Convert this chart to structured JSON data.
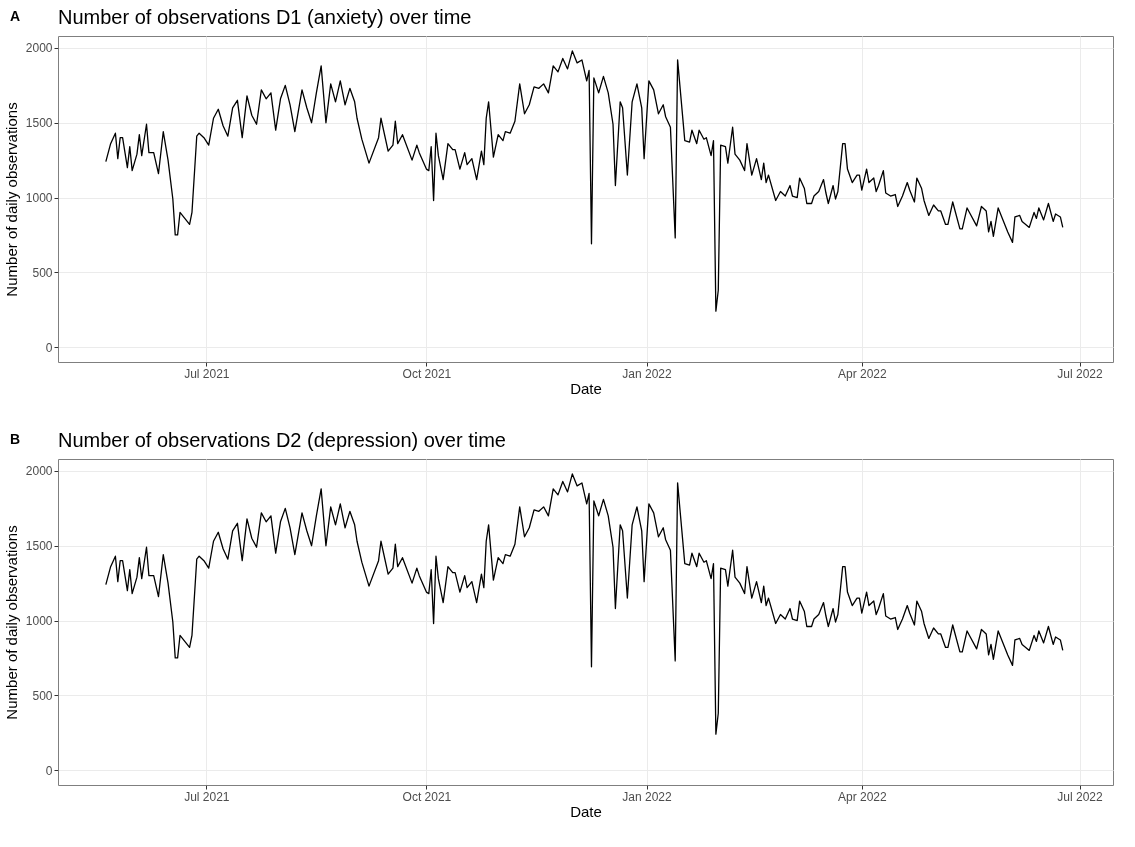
{
  "chart_data": [
    {
      "type": "line",
      "title": "Number of observations D1 (anxiety) over time",
      "annotations": [
        "A"
      ],
      "xlabel": "Date",
      "ylabel": "Number of daily observations",
      "color": "#000000",
      "grid": true,
      "x": [
        "2021-05-20",
        "2021-05-22",
        "2021-05-24",
        "2021-05-25",
        "2021-05-26",
        "2021-05-27",
        "2021-05-29",
        "2021-05-30",
        "2021-05-31",
        "2021-06-02",
        "2021-06-03",
        "2021-06-04",
        "2021-06-06",
        "2021-06-07",
        "2021-06-09",
        "2021-06-11",
        "2021-06-13",
        "2021-06-15",
        "2021-06-17",
        "2021-06-18",
        "2021-06-19",
        "2021-06-20",
        "2021-06-22",
        "2021-06-24",
        "2021-06-25",
        "2021-06-27",
        "2021-06-28",
        "2021-06-30",
        "2021-07-02",
        "2021-07-04",
        "2021-07-06",
        "2021-07-08",
        "2021-07-10",
        "2021-07-12",
        "2021-07-14",
        "2021-07-16",
        "2021-07-18",
        "2021-07-20",
        "2021-07-22",
        "2021-07-24",
        "2021-07-26",
        "2021-07-28",
        "2021-07-30",
        "2021-08-01",
        "2021-08-03",
        "2021-08-05",
        "2021-08-07",
        "2021-08-10",
        "2021-08-12",
        "2021-08-14",
        "2021-08-16",
        "2021-08-18",
        "2021-08-20",
        "2021-08-22",
        "2021-08-24",
        "2021-08-26",
        "2021-08-28",
        "2021-08-30",
        "2021-09-01",
        "2021-09-02",
        "2021-09-04",
        "2021-09-07",
        "2021-09-11",
        "2021-09-12",
        "2021-09-15",
        "2021-09-17",
        "2021-09-18",
        "2021-09-19",
        "2021-09-21",
        "2021-09-25",
        "2021-09-27",
        "2021-09-28",
        "2021-10-01",
        "2021-10-02",
        "2021-10-03",
        "2021-10-04",
        "2021-10-05",
        "2021-10-06",
        "2021-10-08",
        "2021-10-10",
        "2021-10-12",
        "2021-10-13",
        "2021-10-15",
        "2021-10-17",
        "2021-10-18",
        "2021-10-20",
        "2021-10-22",
        "2021-10-24",
        "2021-10-25",
        "2021-10-26",
        "2021-10-27",
        "2021-10-29",
        "2021-10-31",
        "2021-11-02",
        "2021-11-03",
        "2021-11-05",
        "2021-11-07",
        "2021-11-09",
        "2021-11-11",
        "2021-11-13",
        "2021-11-15",
        "2021-11-17",
        "2021-11-19",
        "2021-11-21",
        "2021-11-23",
        "2021-11-25",
        "2021-11-27",
        "2021-11-29",
        "2021-12-01",
        "2021-12-03",
        "2021-12-05",
        "2021-12-07",
        "2021-12-08",
        "2021-12-09",
        "2021-12-10",
        "2021-12-12",
        "2021-12-14",
        "2021-12-16",
        "2021-12-18",
        "2021-12-19",
        "2021-12-21",
        "2021-12-22",
        "2021-12-24",
        "2021-12-26",
        "2021-12-28",
        "2021-12-30",
        "2021-12-31",
        "2022-01-02",
        "2022-01-04",
        "2022-01-06",
        "2022-01-08",
        "2022-01-09",
        "2022-01-11",
        "2022-01-13",
        "2022-01-14",
        "2022-01-17",
        "2022-01-19",
        "2022-01-20",
        "2022-01-22",
        "2022-01-23",
        "2022-01-25",
        "2022-01-26",
        "2022-01-28",
        "2022-01-29",
        "2022-01-30",
        "2022-01-31",
        "2022-02-01",
        "2022-02-03",
        "2022-02-04",
        "2022-02-06",
        "2022-02-07",
        "2022-02-09",
        "2022-02-11",
        "2022-02-12",
        "2022-02-14",
        "2022-02-16",
        "2022-02-18",
        "2022-02-19",
        "2022-02-20",
        "2022-02-21",
        "2022-02-24",
        "2022-02-26",
        "2022-02-28",
        "2022-03-02",
        "2022-03-03",
        "2022-03-05",
        "2022-03-06",
        "2022-03-08",
        "2022-03-09",
        "2022-03-11",
        "2022-03-12",
        "2022-03-14",
        "2022-03-16",
        "2022-03-17",
        "2022-03-18",
        "2022-03-20",
        "2022-03-21",
        "2022-03-22",
        "2022-03-24",
        "2022-03-25",
        "2022-03-26",
        "2022-03-28",
        "2022-03-30",
        "2022-03-31",
        "2022-04-01",
        "2022-04-03",
        "2022-04-04",
        "2022-04-06",
        "2022-04-07",
        "2022-04-08",
        "2022-04-10",
        "2022-04-11",
        "2022-04-13",
        "2022-04-15",
        "2022-04-16",
        "2022-04-18",
        "2022-04-20",
        "2022-04-21",
        "2022-04-23",
        "2022-04-24",
        "2022-04-26",
        "2022-04-27",
        "2022-04-29",
        "2022-05-01",
        "2022-05-03",
        "2022-05-04",
        "2022-05-06",
        "2022-05-07",
        "2022-05-09",
        "2022-05-10",
        "2022-05-12",
        "2022-05-13",
        "2022-05-15",
        "2022-05-16",
        "2022-05-19",
        "2022-05-21",
        "2022-05-23",
        "2022-05-24",
        "2022-05-25",
        "2022-05-26",
        "2022-05-28",
        "2022-05-29",
        "2022-06-01",
        "2022-06-03",
        "2022-06-04",
        "2022-06-06",
        "2022-06-07",
        "2022-06-10",
        "2022-06-12",
        "2022-06-13",
        "2022-06-14",
        "2022-06-16",
        "2022-06-18",
        "2022-06-20",
        "2022-06-21",
        "2022-06-23",
        "2022-06-24"
      ],
      "values": [
        1240,
        1360,
        1430,
        1260,
        1400,
        1400,
        1200,
        1340,
        1180,
        1290,
        1420,
        1280,
        1490,
        1300,
        1300,
        1160,
        1440,
        1250,
        990,
        750,
        750,
        900,
        860,
        820,
        900,
        1410,
        1430,
        1400,
        1350,
        1530,
        1590,
        1480,
        1410,
        1600,
        1650,
        1400,
        1680,
        1550,
        1490,
        1720,
        1660,
        1700,
        1450,
        1660,
        1750,
        1620,
        1440,
        1720,
        1600,
        1500,
        1700,
        1880,
        1500,
        1760,
        1640,
        1780,
        1620,
        1730,
        1640,
        1530,
        1390,
        1230,
        1400,
        1530,
        1310,
        1350,
        1510,
        1360,
        1420,
        1250,
        1350,
        1300,
        1190,
        1180,
        1340,
        980,
        1430,
        1280,
        1120,
        1360,
        1320,
        1320,
        1190,
        1300,
        1220,
        1260,
        1120,
        1310,
        1220,
        1530,
        1640,
        1270,
        1420,
        1380,
        1440,
        1430,
        1510,
        1760,
        1560,
        1620,
        1740,
        1730,
        1760,
        1700,
        1880,
        1840,
        1930,
        1860,
        1980,
        1900,
        1920,
        1780,
        1850,
        690,
        1800,
        1700,
        1810,
        1700,
        1490,
        1080,
        1640,
        1600,
        1150,
        1640,
        1760,
        1600,
        1260,
        1780,
        1720,
        1560,
        1620,
        1540,
        1470,
        730,
        1920,
        1380,
        1370,
        1450,
        1360,
        1450,
        1390,
        1400,
        1280,
        1380,
        240,
        380,
        1350,
        1340,
        1230,
        1470,
        1290,
        1250,
        1180,
        1360,
        1150,
        1260,
        1120,
        1230,
        1100,
        1150,
        980,
        1040,
        1010,
        1080,
        1010,
        1000,
        1130,
        1060,
        960,
        960,
        1010,
        1040,
        1120,
        1030,
        960,
        1080,
        990,
        1040,
        1360,
        1360,
        1190,
        1100,
        1150,
        1150,
        1050,
        1190,
        1100,
        1130,
        1040,
        1080,
        1180,
        1030,
        1010,
        1020,
        940,
        1010,
        1100,
        1050,
        970,
        1130,
        1060,
        980,
        880,
        950,
        910,
        910,
        820,
        820,
        970,
        910,
        790,
        790,
        930,
        900,
        810,
        940,
        910,
        770,
        840,
        740,
        930,
        890,
        770,
        700,
        870,
        880,
        840,
        800,
        900,
        860,
        930,
        850,
        960,
        840,
        890,
        870,
        800
      ],
      "xlim": [
        "2021-04-30",
        "2022-07-15"
      ],
      "xticks": [
        {
          "value": "2021-07-01",
          "label": "Jul 2021"
        },
        {
          "value": "2021-10-01",
          "label": "Oct 2021"
        },
        {
          "value": "2022-01-01",
          "label": "Jan 2022"
        },
        {
          "value": "2022-04-01",
          "label": "Apr 2022"
        },
        {
          "value": "2022-07-01",
          "label": "Jul 2022"
        }
      ],
      "ylim": [
        -100,
        2080
      ],
      "yticks": [
        0,
        500,
        1000,
        1500,
        2000
      ]
    },
    {
      "type": "line",
      "title": "Number of observations D2 (depression) over time",
      "annotations": [
        "B"
      ],
      "xlabel": "Date",
      "ylabel": "Number of daily observations",
      "color": "#000000",
      "grid": true,
      "x": [
        "2021-05-20",
        "2021-05-22",
        "2021-05-24",
        "2021-05-25",
        "2021-05-26",
        "2021-05-27",
        "2021-05-29",
        "2021-05-30",
        "2021-05-31",
        "2021-06-02",
        "2021-06-03",
        "2021-06-04",
        "2021-06-06",
        "2021-06-07",
        "2021-06-09",
        "2021-06-11",
        "2021-06-13",
        "2021-06-15",
        "2021-06-17",
        "2021-06-18",
        "2021-06-19",
        "2021-06-20",
        "2021-06-22",
        "2021-06-24",
        "2021-06-25",
        "2021-06-27",
        "2021-06-28",
        "2021-06-30",
        "2021-07-02",
        "2021-07-04",
        "2021-07-06",
        "2021-07-08",
        "2021-07-10",
        "2021-07-12",
        "2021-07-14",
        "2021-07-16",
        "2021-07-18",
        "2021-07-20",
        "2021-07-22",
        "2021-07-24",
        "2021-07-26",
        "2021-07-28",
        "2021-07-30",
        "2021-08-01",
        "2021-08-03",
        "2021-08-05",
        "2021-08-07",
        "2021-08-10",
        "2021-08-12",
        "2021-08-14",
        "2021-08-16",
        "2021-08-18",
        "2021-08-20",
        "2021-08-22",
        "2021-08-24",
        "2021-08-26",
        "2021-08-28",
        "2021-08-30",
        "2021-09-01",
        "2021-09-02",
        "2021-09-04",
        "2021-09-07",
        "2021-09-11",
        "2021-09-12",
        "2021-09-15",
        "2021-09-17",
        "2021-09-18",
        "2021-09-19",
        "2021-09-21",
        "2021-09-25",
        "2021-09-27",
        "2021-09-28",
        "2021-10-01",
        "2021-10-02",
        "2021-10-03",
        "2021-10-04",
        "2021-10-05",
        "2021-10-06",
        "2021-10-08",
        "2021-10-10",
        "2021-10-12",
        "2021-10-13",
        "2021-10-15",
        "2021-10-17",
        "2021-10-18",
        "2021-10-20",
        "2021-10-22",
        "2021-10-24",
        "2021-10-25",
        "2021-10-26",
        "2021-10-27",
        "2021-10-29",
        "2021-10-31",
        "2021-11-02",
        "2021-11-03",
        "2021-11-05",
        "2021-11-07",
        "2021-11-09",
        "2021-11-11",
        "2021-11-13",
        "2021-11-15",
        "2021-11-17",
        "2021-11-19",
        "2021-11-21",
        "2021-11-23",
        "2021-11-25",
        "2021-11-27",
        "2021-11-29",
        "2021-12-01",
        "2021-12-03",
        "2021-12-05",
        "2021-12-07",
        "2021-12-08",
        "2021-12-09",
        "2021-12-10",
        "2021-12-12",
        "2021-12-14",
        "2021-12-16",
        "2021-12-18",
        "2021-12-19",
        "2021-12-21",
        "2021-12-22",
        "2021-12-24",
        "2021-12-26",
        "2021-12-28",
        "2021-12-30",
        "2021-12-31",
        "2022-01-02",
        "2022-01-04",
        "2022-01-06",
        "2022-01-08",
        "2022-01-09",
        "2022-01-11",
        "2022-01-13",
        "2022-01-14",
        "2022-01-17",
        "2022-01-19",
        "2022-01-20",
        "2022-01-22",
        "2022-01-23",
        "2022-01-25",
        "2022-01-26",
        "2022-01-28",
        "2022-01-29",
        "2022-01-30",
        "2022-01-31",
        "2022-02-01",
        "2022-02-03",
        "2022-02-04",
        "2022-02-06",
        "2022-02-07",
        "2022-02-09",
        "2022-02-11",
        "2022-02-12",
        "2022-02-14",
        "2022-02-16",
        "2022-02-18",
        "2022-02-19",
        "2022-02-20",
        "2022-02-21",
        "2022-02-24",
        "2022-02-26",
        "2022-02-28",
        "2022-03-02",
        "2022-03-03",
        "2022-03-05",
        "2022-03-06",
        "2022-03-08",
        "2022-03-09",
        "2022-03-11",
        "2022-03-12",
        "2022-03-14",
        "2022-03-16",
        "2022-03-17",
        "2022-03-18",
        "2022-03-20",
        "2022-03-21",
        "2022-03-22",
        "2022-03-24",
        "2022-03-25",
        "2022-03-26",
        "2022-03-28",
        "2022-03-30",
        "2022-03-31",
        "2022-04-01",
        "2022-04-03",
        "2022-04-04",
        "2022-04-06",
        "2022-04-07",
        "2022-04-08",
        "2022-04-10",
        "2022-04-11",
        "2022-04-13",
        "2022-04-15",
        "2022-04-16",
        "2022-04-18",
        "2022-04-20",
        "2022-04-21",
        "2022-04-23",
        "2022-04-24",
        "2022-04-26",
        "2022-04-27",
        "2022-04-29",
        "2022-05-01",
        "2022-05-03",
        "2022-05-04",
        "2022-05-06",
        "2022-05-07",
        "2022-05-09",
        "2022-05-10",
        "2022-05-12",
        "2022-05-13",
        "2022-05-15",
        "2022-05-16",
        "2022-05-19",
        "2022-05-21",
        "2022-05-23",
        "2022-05-24",
        "2022-05-25",
        "2022-05-26",
        "2022-05-28",
        "2022-05-29",
        "2022-06-01",
        "2022-06-03",
        "2022-06-04",
        "2022-06-06",
        "2022-06-07",
        "2022-06-10",
        "2022-06-12",
        "2022-06-13",
        "2022-06-14",
        "2022-06-16",
        "2022-06-18",
        "2022-06-20",
        "2022-06-21",
        "2022-06-23",
        "2022-06-24"
      ],
      "values": [
        1240,
        1360,
        1430,
        1260,
        1400,
        1400,
        1200,
        1340,
        1180,
        1290,
        1420,
        1280,
        1490,
        1300,
        1300,
        1160,
        1440,
        1250,
        990,
        750,
        750,
        900,
        860,
        820,
        900,
        1410,
        1430,
        1400,
        1350,
        1530,
        1590,
        1480,
        1410,
        1600,
        1650,
        1400,
        1680,
        1550,
        1490,
        1720,
        1660,
        1700,
        1450,
        1660,
        1750,
        1620,
        1440,
        1720,
        1600,
        1500,
        1700,
        1880,
        1500,
        1760,
        1640,
        1780,
        1620,
        1730,
        1640,
        1530,
        1390,
        1230,
        1400,
        1530,
        1310,
        1350,
        1510,
        1360,
        1420,
        1250,
        1350,
        1300,
        1190,
        1180,
        1340,
        980,
        1430,
        1280,
        1120,
        1360,
        1320,
        1320,
        1190,
        1300,
        1220,
        1260,
        1120,
        1310,
        1220,
        1530,
        1640,
        1270,
        1420,
        1380,
        1440,
        1430,
        1510,
        1760,
        1560,
        1620,
        1740,
        1730,
        1760,
        1700,
        1880,
        1840,
        1930,
        1860,
        1980,
        1900,
        1920,
        1780,
        1850,
        690,
        1800,
        1700,
        1810,
        1700,
        1490,
        1080,
        1640,
        1600,
        1150,
        1640,
        1760,
        1600,
        1260,
        1780,
        1720,
        1560,
        1620,
        1540,
        1470,
        730,
        1920,
        1380,
        1370,
        1450,
        1360,
        1450,
        1390,
        1400,
        1280,
        1380,
        240,
        380,
        1350,
        1340,
        1230,
        1470,
        1290,
        1250,
        1180,
        1360,
        1150,
        1260,
        1120,
        1230,
        1100,
        1150,
        980,
        1040,
        1010,
        1080,
        1010,
        1000,
        1130,
        1060,
        960,
        960,
        1010,
        1040,
        1120,
        1030,
        960,
        1080,
        990,
        1040,
        1360,
        1360,
        1190,
        1100,
        1150,
        1150,
        1050,
        1190,
        1100,
        1130,
        1040,
        1080,
        1180,
        1030,
        1010,
        1020,
        940,
        1010,
        1100,
        1050,
        970,
        1130,
        1060,
        980,
        880,
        950,
        910,
        910,
        820,
        820,
        970,
        910,
        790,
        790,
        930,
        900,
        810,
        940,
        910,
        770,
        840,
        740,
        930,
        890,
        770,
        700,
        870,
        880,
        840,
        800,
        900,
        860,
        930,
        850,
        960,
        840,
        890,
        870,
        800
      ],
      "xlim": [
        "2021-04-30",
        "2022-07-15"
      ],
      "xticks": [
        {
          "value": "2021-07-01",
          "label": "Jul 2021"
        },
        {
          "value": "2021-10-01",
          "label": "Oct 2021"
        },
        {
          "value": "2022-01-01",
          "label": "Jan 2022"
        },
        {
          "value": "2022-04-01",
          "label": "Apr 2022"
        },
        {
          "value": "2022-07-01",
          "label": "Jul 2022"
        }
      ],
      "ylim": [
        -100,
        2080
      ],
      "yticks": [
        0,
        500,
        1000,
        1500,
        2000
      ]
    }
  ]
}
